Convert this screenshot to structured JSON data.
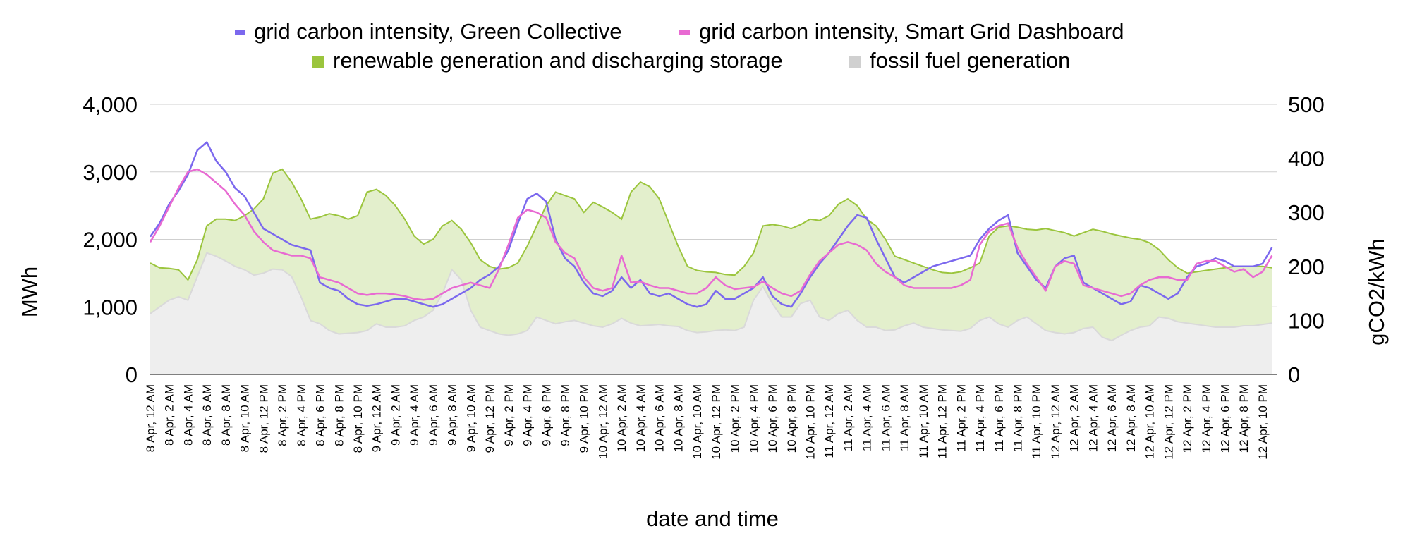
{
  "chart_data": {
    "type": "line",
    "title": "",
    "xlabel": "date and time",
    "ylabel_left": "MWh",
    "ylabel_right": "gCO2/kWh",
    "ylim_left": [
      0,
      4000
    ],
    "ylim_right": [
      0,
      500
    ],
    "yticks_left": [
      "0",
      "1,000",
      "2,000",
      "3,000",
      "4,000"
    ],
    "yticks_right": [
      "0",
      "100",
      "200",
      "300",
      "400",
      "500"
    ],
    "grid": true,
    "legend_position": "top",
    "x_tick_labels": [
      "8 Apr, 12 AM",
      "8 Apr, 2 AM",
      "8 Apr, 4 AM",
      "8 Apr, 6 AM",
      "8 Apr, 8 AM",
      "8 Apr, 10 AM",
      "8 Apr, 12 PM",
      "8 Apr, 2 PM",
      "8 Apr, 4 PM",
      "8 Apr, 6 PM",
      "8 Apr, 8 PM",
      "8 Apr, 10 PM",
      "9 Apr, 12 AM",
      "9 Apr, 2 AM",
      "9 Apr, 4 AM",
      "9 Apr, 6 AM",
      "9 Apr, 8 AM",
      "9 Apr, 10 AM",
      "9 Apr, 12 PM",
      "9 Apr, 2 PM",
      "9 Apr, 4 PM",
      "9 Apr, 6 PM",
      "9 Apr, 8 PM",
      "9 Apr, 10 PM",
      "10 Apr, 12 AM",
      "10 Apr, 2 AM",
      "10 Apr, 4 AM",
      "10 Apr, 6 AM",
      "10 Apr, 8 AM",
      "10 Apr, 10 AM",
      "10 Apr, 12 PM",
      "10 Apr, 2 PM",
      "10 Apr, 4 PM",
      "10 Apr, 6 PM",
      "10 Apr, 8 PM",
      "10 Apr, 10 PM",
      "11 Apr, 12 AM",
      "11 Apr, 2 AM",
      "11 Apr, 4 AM",
      "11 Apr, 6 AM",
      "11 Apr, 8 AM",
      "11 Apr, 10 AM",
      "11 Apr, 12 PM",
      "11 Apr, 2 PM",
      "11 Apr, 4 PM",
      "11 Apr, 6 PM",
      "11 Apr, 8 PM",
      "11 Apr, 10 PM",
      "12 Apr, 12 AM",
      "12 Apr, 2 AM",
      "12 Apr, 4 AM",
      "12 Apr, 6 AM",
      "12 Apr, 8 AM",
      "12 Apr, 10 AM",
      "12 Apr, 12 PM",
      "12 Apr, 2 PM",
      "12 Apr, 4 PM",
      "12 Apr, 6 PM",
      "12 Apr, 8 PM",
      "12 Apr, 10 PM"
    ],
    "x_hours": [
      0,
      1,
      2,
      3,
      4,
      5,
      6,
      7,
      8,
      9,
      10,
      11,
      12,
      13,
      14,
      15,
      16,
      17,
      18,
      19,
      20,
      21,
      22,
      23,
      24,
      25,
      26,
      27,
      28,
      29,
      30,
      31,
      32,
      33,
      34,
      35,
      36,
      37,
      38,
      39,
      40,
      41,
      42,
      43,
      44,
      45,
      46,
      47,
      48,
      49,
      50,
      51,
      52,
      53,
      54,
      55,
      56,
      57,
      58,
      59,
      60,
      61,
      62,
      63,
      64,
      65,
      66,
      67,
      68,
      69,
      70,
      71,
      72,
      73,
      74,
      75,
      76,
      77,
      78,
      79,
      80,
      81,
      82,
      83,
      84,
      85,
      86,
      87,
      88,
      89,
      90,
      91,
      92,
      93,
      94,
      95,
      96,
      97,
      98,
      99,
      100,
      101,
      102,
      103,
      104,
      105,
      106,
      107,
      108,
      109,
      110,
      111,
      112,
      113,
      114,
      115,
      116,
      117,
      118,
      119
    ],
    "series": [
      {
        "name": "renewable generation and discharging storage",
        "kind": "area",
        "axis": "left",
        "color": "#9bc53d",
        "fill": "#e3efcc",
        "values": [
          1650,
          1580,
          1570,
          1550,
          1400,
          1700,
          2200,
          2300,
          2300,
          2280,
          2350,
          2450,
          2600,
          2980,
          3040,
          2850,
          2600,
          2300,
          2330,
          2380,
          2350,
          2300,
          2350,
          2700,
          2740,
          2650,
          2500,
          2300,
          2050,
          1930,
          2000,
          2200,
          2280,
          2150,
          1950,
          1700,
          1600,
          1560,
          1580,
          1650,
          1900,
          2200,
          2500,
          2700,
          2650,
          2600,
          2400,
          2550,
          2480,
          2400,
          2300,
          2700,
          2850,
          2780,
          2600,
          2250,
          1900,
          1600,
          1540,
          1520,
          1510,
          1480,
          1470,
          1600,
          1800,
          2200,
          2220,
          2200,
          2160,
          2220,
          2300,
          2280,
          2350,
          2520,
          2600,
          2500,
          2300,
          2200,
          2000,
          1750,
          1700,
          1650,
          1600,
          1550,
          1510,
          1500,
          1520,
          1580,
          1650,
          2050,
          2180,
          2200,
          2180,
          2150,
          2140,
          2160,
          2130,
          2100,
          2050,
          2100,
          2150,
          2120,
          2080,
          2050,
          2020,
          2000,
          1950,
          1850,
          1700,
          1580,
          1500,
          1520,
          1540,
          1560,
          1580,
          1600,
          1600,
          1600,
          1600,
          1580
        ]
      },
      {
        "name": "fossil fuel generation",
        "kind": "area",
        "axis": "left",
        "color": "#d9d9d9",
        "fill": "#eeeeee",
        "values": [
          900,
          1000,
          1100,
          1150,
          1100,
          1450,
          1800,
          1750,
          1680,
          1600,
          1550,
          1470,
          1500,
          1560,
          1550,
          1450,
          1150,
          800,
          750,
          650,
          600,
          610,
          620,
          650,
          750,
          700,
          700,
          720,
          800,
          850,
          950,
          1200,
          1550,
          1400,
          950,
          700,
          650,
          600,
          580,
          600,
          650,
          850,
          800,
          750,
          780,
          800,
          760,
          720,
          700,
          750,
          830,
          760,
          720,
          730,
          740,
          720,
          710,
          650,
          620,
          630,
          650,
          660,
          650,
          700,
          1100,
          1300,
          1050,
          850,
          850,
          1050,
          1100,
          850,
          800,
          900,
          950,
          800,
          700,
          700,
          650,
          660,
          720,
          760,
          700,
          680,
          660,
          650,
          640,
          680,
          800,
          850,
          750,
          700,
          800,
          850,
          750,
          650,
          620,
          600,
          620,
          680,
          700,
          550,
          500,
          580,
          650,
          700,
          720,
          850,
          830,
          780,
          760,
          740,
          720,
          700,
          700,
          700,
          720,
          720,
          740,
          760
        ]
      },
      {
        "name": "grid carbon intensity, Green Collective",
        "kind": "line",
        "axis": "right",
        "color": "#7b68ee",
        "values": [
          255,
          280,
          315,
          340,
          370,
          415,
          430,
          395,
          375,
          345,
          330,
          300,
          270,
          260,
          250,
          240,
          235,
          230,
          170,
          160,
          155,
          140,
          130,
          127,
          130,
          135,
          140,
          140,
          135,
          130,
          125,
          130,
          140,
          150,
          160,
          175,
          185,
          200,
          230,
          280,
          325,
          335,
          320,
          250,
          215,
          200,
          170,
          150,
          145,
          155,
          180,
          160,
          175,
          150,
          145,
          150,
          140,
          130,
          125,
          130,
          155,
          140,
          140,
          150,
          160,
          180,
          145,
          130,
          125,
          150,
          180,
          205,
          225,
          250,
          275,
          295,
          290,
          250,
          215,
          180,
          170,
          180,
          190,
          200,
          205,
          210,
          215,
          220,
          250,
          270,
          285,
          295,
          225,
          200,
          175,
          160,
          200,
          215,
          220,
          170,
          160,
          150,
          140,
          130,
          135,
          165,
          160,
          150,
          140,
          150,
          180,
          200,
          205,
          215,
          210,
          200,
          200,
          200,
          205,
          235
        ]
      },
      {
        "name": "grid carbon intensity, Smart Grid Dashboard",
        "kind": "line",
        "axis": "right",
        "color": "#e86ad2",
        "values": [
          245,
          275,
          310,
          345,
          375,
          380,
          370,
          355,
          340,
          315,
          295,
          265,
          245,
          230,
          225,
          220,
          220,
          215,
          180,
          175,
          170,
          160,
          150,
          147,
          150,
          150,
          148,
          145,
          140,
          138,
          140,
          150,
          160,
          165,
          170,
          165,
          160,
          195,
          240,
          290,
          305,
          300,
          290,
          245,
          225,
          215,
          180,
          160,
          155,
          160,
          220,
          170,
          172,
          165,
          160,
          160,
          155,
          150,
          150,
          160,
          180,
          165,
          158,
          160,
          162,
          172,
          160,
          150,
          145,
          155,
          185,
          210,
          225,
          240,
          245,
          240,
          230,
          205,
          190,
          180,
          165,
          160,
          160,
          160,
          160,
          160,
          165,
          175,
          240,
          265,
          275,
          280,
          235,
          205,
          180,
          155,
          200,
          210,
          205,
          165,
          160,
          155,
          150,
          145,
          150,
          165,
          175,
          180,
          180,
          175,
          175,
          205,
          210,
          210,
          200,
          190,
          195,
          180,
          190,
          220
        ]
      }
    ]
  }
}
